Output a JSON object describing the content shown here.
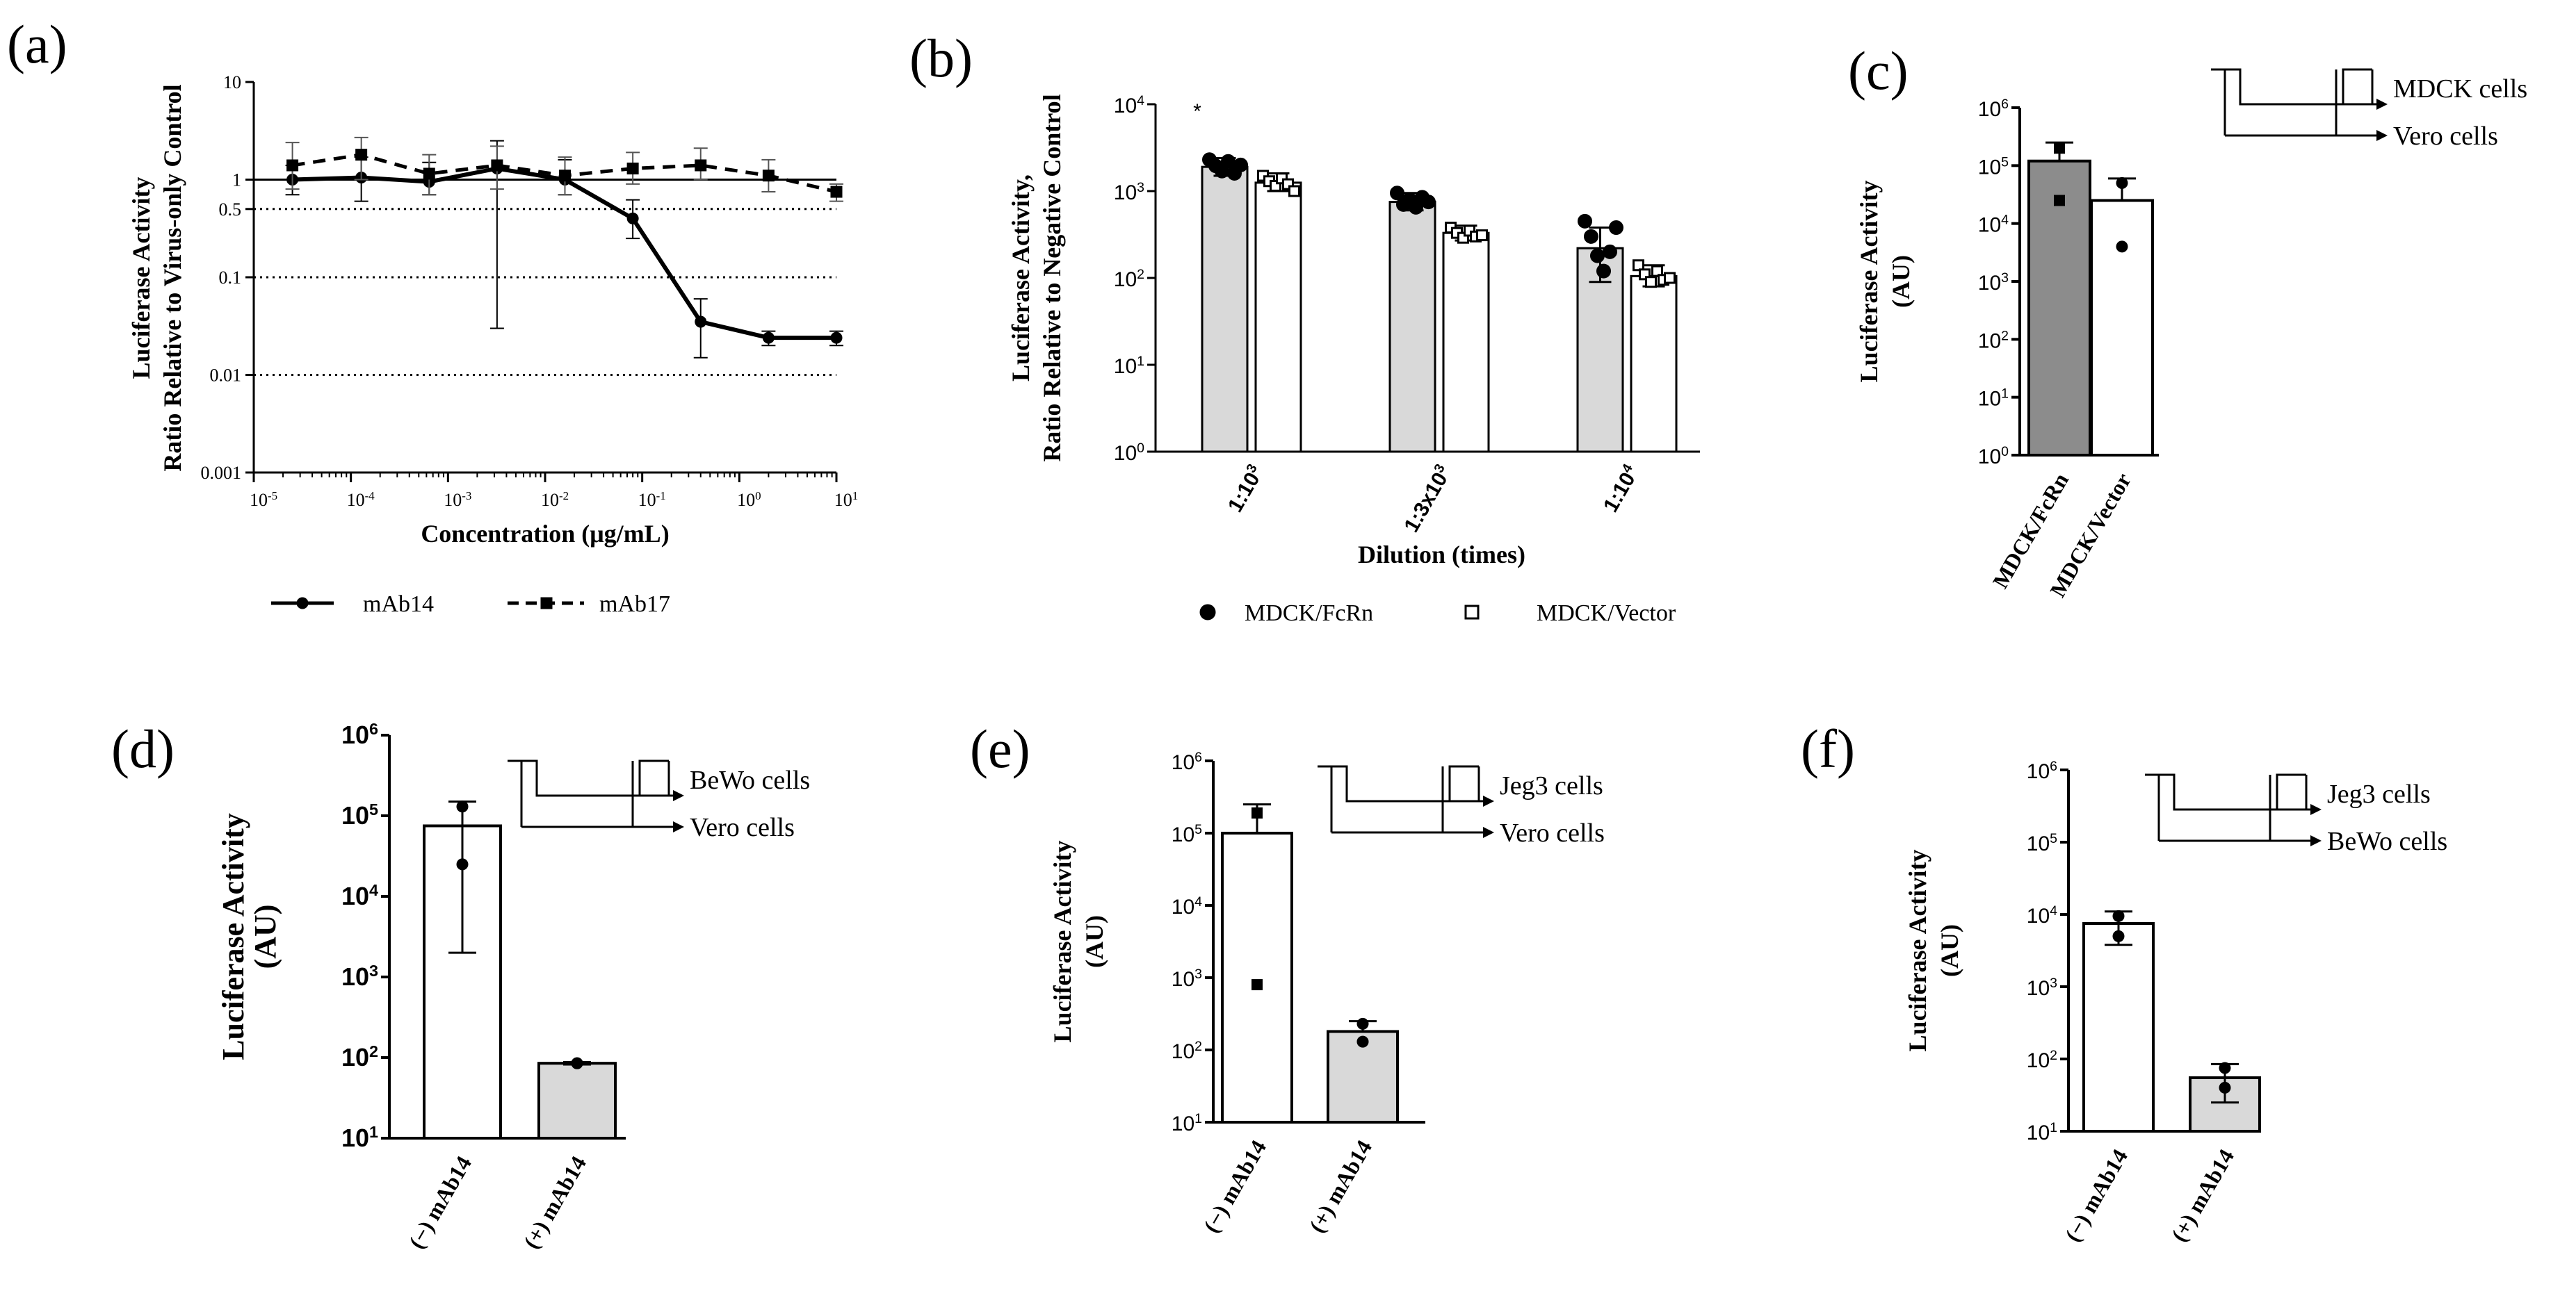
{
  "figure": {
    "panel_labels": [
      "(a)",
      "(b)",
      "(c)",
      "(d)",
      "(e)",
      "(f)"
    ]
  },
  "colors": {
    "black": "#000000",
    "light_gray_bar": "#d9d9d9",
    "dark_gray_bar": "#8c8c8c",
    "white_bar": "#ffffff"
  },
  "chart_data": [
    {
      "panel": "(a)",
      "type": "line",
      "ylabel_line1": "Luciferase Activity",
      "ylabel_line2": "Ratio Relative to Virus-only Control",
      "xlabel": "Concentration (μg/mL)",
      "xscale": "log",
      "yscale": "log",
      "xlim": [
        1e-05,
        10
      ],
      "ylim": [
        0.001,
        10
      ],
      "x_ticks": [
        {
          "base": "10",
          "exp": "-5"
        },
        {
          "base": "10",
          "exp": "-4"
        },
        {
          "base": "10",
          "exp": "-3"
        },
        {
          "base": "10",
          "exp": "-2"
        },
        {
          "base": "10",
          "exp": "-1"
        },
        {
          "base": "10",
          "exp": "0"
        },
        {
          "base": "10",
          "exp": "1"
        }
      ],
      "y_ticks": [
        "10",
        "1",
        "0.5",
        "0.1",
        "0.01",
        "0.001"
      ],
      "reference_lines": [
        0.5,
        0.1,
        0.01
      ],
      "series": [
        {
          "name": "mAb14",
          "style": "solid",
          "marker": "circle",
          "x": [
            2.5e-05,
            0.000128,
            0.00064,
            0.0032,
            0.016,
            0.08,
            0.4,
            2,
            10
          ],
          "y": [
            1.0,
            1.05,
            0.95,
            1.3,
            1.0,
            0.4,
            0.035,
            0.024,
            0.024
          ],
          "err_upper": [
            1.4,
            1.7,
            1.5,
            2.5,
            1.6,
            0.62,
            0.06,
            0.028,
            0.028
          ],
          "err_lower": [
            0.7,
            0.6,
            0.7,
            0.03,
            0.7,
            0.25,
            0.015,
            0.02,
            0.02
          ]
        },
        {
          "name": "mAb17",
          "style": "dashed",
          "marker": "square",
          "x": [
            2.5e-05,
            0.000128,
            0.00064,
            0.0032,
            0.016,
            0.08,
            0.4,
            2,
            10
          ],
          "y": [
            1.4,
            1.8,
            1.15,
            1.4,
            1.1,
            1.3,
            1.4,
            1.1,
            0.75
          ],
          "err_upper": [
            2.4,
            2.7,
            1.8,
            2.2,
            1.7,
            1.9,
            2.1,
            1.6,
            0.9
          ],
          "err_lower": [
            0.8,
            1.0,
            0.7,
            0.8,
            0.7,
            0.9,
            1.0,
            0.75,
            0.6
          ]
        }
      ],
      "legend": [
        "mAb14",
        "mAb17"
      ]
    },
    {
      "panel": "(b)",
      "type": "bar",
      "ylabel_line1": "Luciferase Activity,",
      "ylabel_line2": "Ratio Relative to Negative Control",
      "xlabel": "Dilution (times)",
      "yscale": "log",
      "ylim": [
        1,
        10000
      ],
      "y_ticks": [
        {
          "base": "10",
          "exp": "4"
        },
        {
          "base": "10",
          "exp": "3"
        },
        {
          "base": "10",
          "exp": "2"
        },
        {
          "base": "10",
          "exp": "1"
        },
        {
          "base": "10",
          "exp": "0"
        }
      ],
      "categories": [
        {
          "base": "1:10",
          "exp": "3"
        },
        {
          "base": "1:3x10",
          "exp": "3"
        },
        {
          "base": "1:10",
          "exp": "4"
        }
      ],
      "series": [
        {
          "name": "MDCK/FcRn",
          "fill": "#d9d9d9",
          "marker": "circle",
          "values": [
            1900,
            750,
            220
          ],
          "err": [
            [
              1500,
              2400
            ],
            [
              600,
              950
            ],
            [
              90,
              380
            ]
          ]
        },
        {
          "name": "MDCK/Vector",
          "fill": "#ffffff",
          "marker": "square",
          "values": [
            1250,
            330,
            105
          ],
          "err": [
            [
              1000,
              1600
            ],
            [
              270,
              400
            ],
            [
              80,
              140
            ]
          ]
        }
      ],
      "points": [
        [
          [
            2300,
            1950,
            1700,
            2200,
            1600,
            2000
          ],
          [
            1500,
            1300,
            1150,
            1400,
            1200,
            1000
          ]
        ],
        [
          [
            950,
            700,
            800,
            650,
            850,
            750
          ],
          [
            380,
            330,
            290,
            350,
            300,
            310
          ]
        ],
        [
          [
            450,
            300,
            180,
            120,
            200,
            380
          ],
          [
            140,
            110,
            90,
            120,
            95,
            100
          ]
        ]
      ],
      "annotation": "*",
      "legend": [
        "MDCK/FcRn",
        "MDCK/Vector"
      ]
    },
    {
      "panel": "(c)",
      "type": "bar",
      "ylabel_line1": "Luciferase Activity",
      "ylabel_line2": "(AU)",
      "yscale": "log",
      "ylim": [
        1,
        1000000
      ],
      "y_ticks": [
        {
          "base": "10",
          "exp": "6"
        },
        {
          "base": "10",
          "exp": "5"
        },
        {
          "base": "10",
          "exp": "4"
        },
        {
          "base": "10",
          "exp": "3"
        },
        {
          "base": "10",
          "exp": "2"
        },
        {
          "base": "10",
          "exp": "1"
        },
        {
          "base": "10",
          "exp": "0"
        }
      ],
      "categories": [
        "MDCK/FcRn",
        "MDCK/Vector"
      ],
      "values": [
        120000,
        25000
      ],
      "err_upper": [
        250000,
        60000
      ],
      "points": [
        [
          200000,
          25000
        ],
        [
          50000,
          4000
        ]
      ],
      "fills": [
        "#8c8c8c",
        "#ffffff"
      ],
      "diagram_labels": [
        "MDCK cells",
        "Vero cells"
      ]
    },
    {
      "panel": "(d)",
      "type": "bar",
      "ylabel_line1": "Luciferase Activity",
      "ylabel_line2": "(AU)",
      "yscale": "log",
      "ylim": [
        10,
        1000000
      ],
      "y_ticks": [
        {
          "base": "10",
          "exp": "6"
        },
        {
          "base": "10",
          "exp": "5"
        },
        {
          "base": "10",
          "exp": "4"
        },
        {
          "base": "10",
          "exp": "3"
        },
        {
          "base": "10",
          "exp": "2"
        },
        {
          "base": "10",
          "exp": "1"
        }
      ],
      "categories": [
        "(−) mAb14",
        "(+) mAb14"
      ],
      "values": [
        75000,
        85
      ],
      "err": [
        [
          2000,
          150000
        ],
        [
          82,
          88
        ]
      ],
      "points": [
        [
          130000,
          25000
        ],
        [
          85,
          85
        ]
      ],
      "fills": [
        "#ffffff",
        "#d9d9d9"
      ],
      "diagram_labels": [
        "BeWo cells",
        "Vero cells"
      ]
    },
    {
      "panel": "(e)",
      "type": "bar",
      "ylabel_line1": "Luciferase Activity",
      "ylabel_line2": "(AU)",
      "yscale": "log",
      "ylim": [
        10,
        1000000
      ],
      "y_ticks": [
        {
          "base": "10",
          "exp": "6"
        },
        {
          "base": "10",
          "exp": "5"
        },
        {
          "base": "10",
          "exp": "4"
        },
        {
          "base": "10",
          "exp": "3"
        },
        {
          "base": "10",
          "exp": "2"
        },
        {
          "base": "10",
          "exp": "1"
        }
      ],
      "categories": [
        "(−) mAb14",
        "(+) mAb14"
      ],
      "values": [
        100000,
        180
      ],
      "err_upper": [
        250000,
        250
      ],
      "points": [
        [
          190000,
          800
        ],
        [
          230,
          130
        ]
      ],
      "fills": [
        "#ffffff",
        "#d9d9d9"
      ],
      "diagram_labels": [
        "Jeg3 cells",
        "Vero cells"
      ]
    },
    {
      "panel": "(f)",
      "type": "bar",
      "ylabel_line1": "Luciferase Activity",
      "ylabel_line2": "(AU)",
      "yscale": "log",
      "ylim": [
        10,
        1000000
      ],
      "y_ticks": [
        {
          "base": "10",
          "exp": "6"
        },
        {
          "base": "10",
          "exp": "5"
        },
        {
          "base": "10",
          "exp": "4"
        },
        {
          "base": "10",
          "exp": "3"
        },
        {
          "base": "10",
          "exp": "2"
        },
        {
          "base": "10",
          "exp": "1"
        }
      ],
      "categories": [
        "(−) mAb14",
        "(+) mAb14"
      ],
      "values": [
        7500,
        55
      ],
      "err": [
        [
          3800,
          11000
        ],
        [
          25,
          85
        ]
      ],
      "points": [
        [
          9500,
          5000
        ],
        [
          75,
          40
        ]
      ],
      "fills": [
        "#ffffff",
        "#d9d9d9"
      ],
      "diagram_labels": [
        "Jeg3 cells",
        "BeWo cells"
      ]
    }
  ]
}
